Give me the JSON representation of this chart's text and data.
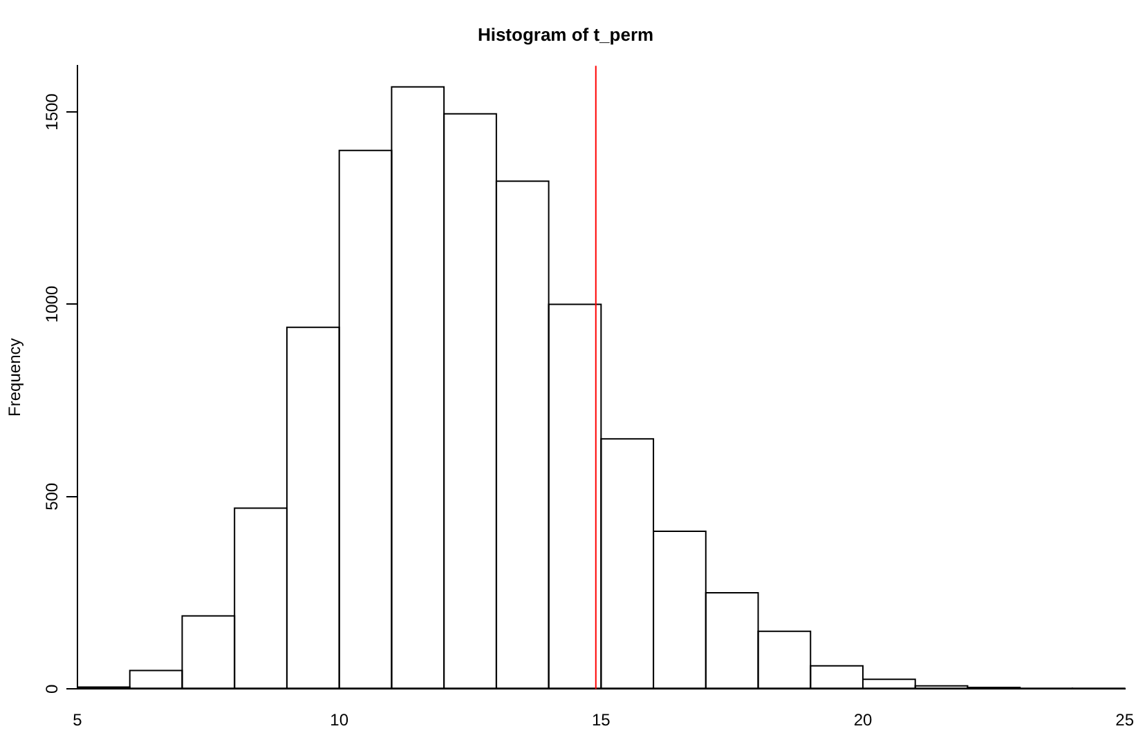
{
  "chart_data": {
    "type": "histogram",
    "title": "Histogram of t_perm",
    "ylabel": "Frequency",
    "bins": [
      5,
      6,
      7,
      8,
      9,
      10,
      11,
      12,
      13,
      14,
      15,
      16,
      17,
      18,
      19,
      20,
      21,
      22,
      23,
      24,
      25
    ],
    "values": [
      5,
      48,
      190,
      470,
      940,
      1400,
      1565,
      1495,
      1320,
      1000,
      650,
      410,
      250,
      150,
      60,
      25,
      8,
      4,
      1,
      1
    ],
    "color": "#000000",
    "xlim": [
      5,
      25
    ],
    "xticks": [
      5,
      10,
      15,
      20,
      25
    ],
    "ylim": [
      0,
      1620
    ],
    "yticks": [
      0,
      500,
      1000,
      1500
    ],
    "ref_lines": [
      {
        "axis": "x",
        "value": 14.9,
        "color": "#ff0000"
      }
    ],
    "grid": false,
    "legend": false
  }
}
